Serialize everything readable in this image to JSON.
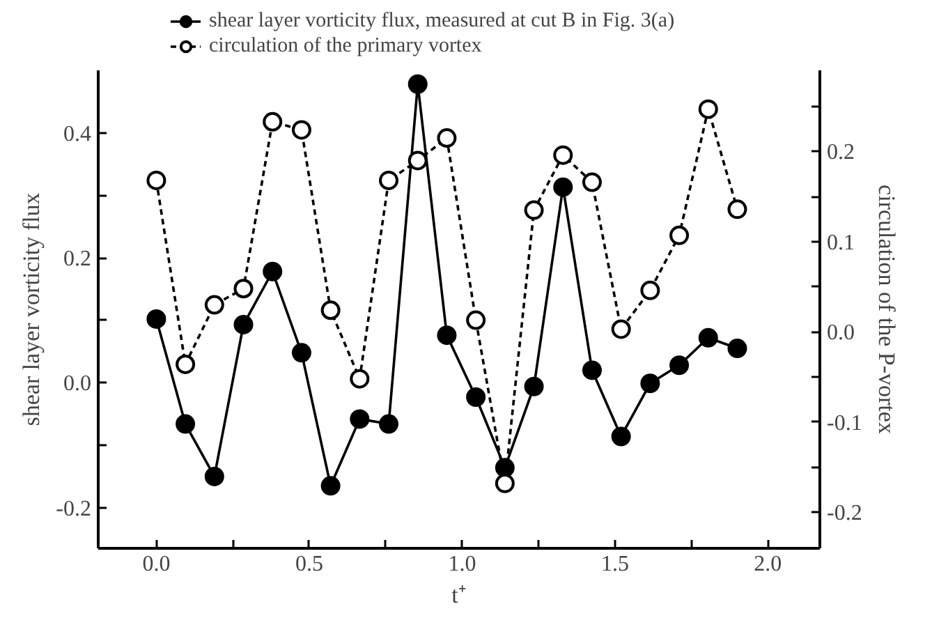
{
  "chart_data": {
    "type": "line",
    "x": [
      0,
      0.095,
      0.19,
      0.285,
      0.38,
      0.475,
      0.57,
      0.665,
      0.76,
      0.855,
      0.95,
      1.045,
      1.14,
      1.235,
      1.33,
      1.425,
      1.52,
      1.615,
      1.71,
      1.805,
      1.9
    ],
    "series": [
      {
        "name": "shear layer vorticity flux, measured at cut B in Fig. 3(a)",
        "color": "#000000",
        "line_style": "solid",
        "values": [
          0.102,
          -0.066,
          -0.15,
          0.093,
          0.178,
          0.048,
          -0.165,
          -0.058,
          -0.066,
          0.478,
          0.076,
          -0.023,
          -0.136,
          -0.006,
          0.313,
          0.02,
          -0.086,
          -0.001,
          0.028,
          0.072,
          0.055
        ]
      },
      {
        "name": "circulation of the primary vortex",
        "color": "#000000",
        "line_style": "dashed",
        "axis": "y2",
        "values": [
          0.168,
          -0.036,
          0.03,
          0.048,
          0.233,
          0.224,
          0.024,
          -0.052,
          0.168,
          0.19,
          0.215,
          0.013,
          -0.168,
          0.135,
          0.196,
          0.166,
          0.003,
          0.046,
          0.107,
          0.247,
          0.136
        ]
      }
    ],
    "marker": "circle",
    "xlabel": "t⁺",
    "ylabel": "shear layer vorticity flux",
    "y2label": "circulation of the P-vortex",
    "xlim": [
      -0.19,
      2.17
    ],
    "xticks": [
      {
        "value": 0,
        "label": "0.0"
      },
      {
        "value": 0.25,
        "label": null
      },
      {
        "value": 0.5,
        "label": "0.5"
      },
      {
        "value": 0.75,
        "label": null
      },
      {
        "value": 1,
        "label": "1.0"
      },
      {
        "value": 1.25,
        "label": null
      },
      {
        "value": 1.5,
        "label": "1.5"
      },
      {
        "value": 1.75,
        "label": null
      },
      {
        "value": 2,
        "label": "2.0"
      }
    ],
    "ylim": [
      -0.265,
      0.5
    ],
    "yticks": [
      {
        "value": -0.2,
        "label": "-0.2"
      },
      {
        "value": -0.1,
        "label": null
      },
      {
        "value": 0,
        "label": "0.0"
      },
      {
        "value": 0.1,
        "label": null
      },
      {
        "value": 0.2,
        "label": "0.2"
      },
      {
        "value": 0.3,
        "label": null
      },
      {
        "value": 0.4,
        "label": "0.4"
      }
    ],
    "y2lim": [
      -0.24,
      0.29
    ],
    "y2ticks": [
      {
        "value": -0.2,
        "label": "-0.2"
      },
      {
        "value": -0.15,
        "label": null
      },
      {
        "value": -0.1,
        "label": "-0.1"
      },
      {
        "value": -0.05,
        "label": null
      },
      {
        "value": 0,
        "label": "0.0"
      },
      {
        "value": 0.05,
        "label": null
      },
      {
        "value": 0.1,
        "label": "0.1"
      },
      {
        "value": 0.15,
        "label": null
      },
      {
        "value": 0.2,
        "label": "0.2"
      },
      {
        "value": 0.25,
        "label": null
      }
    ],
    "legend": "top left"
  }
}
